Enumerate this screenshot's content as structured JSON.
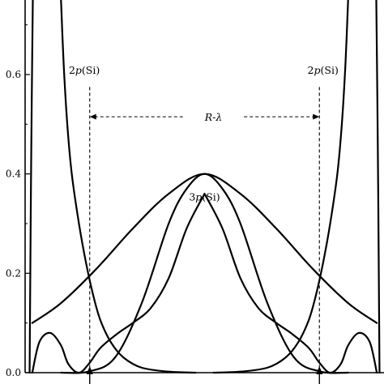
{
  "chart_data": {
    "type": "line",
    "title": "",
    "xlabel": "",
    "ylabel": "",
    "ylim": [
      0,
      0.75
    ],
    "xlim": [
      -1,
      1
    ],
    "y_ticks": [
      0.0,
      0.2,
      0.4,
      0.6
    ],
    "y_tick_labels": [
      "0.0",
      "0.2",
      "0.4",
      "0.6"
    ],
    "grid": false,
    "legend": "none",
    "series": [
      {
        "curve": "wide-bell",
        "x": [
          -0.96,
          -0.8,
          -0.6,
          -0.4,
          -0.2,
          0.0,
          0.2,
          0.4,
          0.6,
          0.8,
          0.96
        ],
        "y": [
          0.1,
          0.14,
          0.21,
          0.29,
          0.36,
          0.4,
          0.36,
          0.29,
          0.21,
          0.14,
          0.1
        ]
      },
      {
        "curve": "narrow-bell",
        "x": [
          -0.8,
          -0.65,
          -0.5,
          -0.35,
          -0.2,
          -0.1,
          0.0,
          0.1,
          0.2,
          0.35,
          0.5,
          0.65,
          0.8
        ],
        "y": [
          0.0,
          0.002,
          0.03,
          0.14,
          0.3,
          0.37,
          0.4,
          0.37,
          0.3,
          0.14,
          0.03,
          0.002,
          0.0
        ]
      },
      {
        "curve": "core-left",
        "x": [
          -0.96,
          -0.92,
          -0.86,
          -0.8,
          -0.76,
          -0.7,
          -0.64,
          -0.58,
          -0.48,
          -0.4,
          -0.3,
          -0.2,
          -0.1,
          0.0
        ],
        "y": [
          0.0,
          0.062,
          0.08,
          0.055,
          0.018,
          0.0,
          0.02,
          0.05,
          0.08,
          0.1,
          0.13,
          0.19,
          0.29,
          0.36
        ]
      },
      {
        "curve": "core-right",
        "x": [
          0.0,
          0.1,
          0.2,
          0.3,
          0.4,
          0.48,
          0.58,
          0.64,
          0.7,
          0.76,
          0.8,
          0.86,
          0.92,
          0.96
        ],
        "y": [
          0.36,
          0.29,
          0.19,
          0.13,
          0.1,
          0.08,
          0.05,
          0.02,
          0.0,
          0.018,
          0.055,
          0.08,
          0.062,
          0.0
        ]
      },
      {
        "curve": "2p-left-peak",
        "x": [
          -0.975,
          -0.972,
          -0.968,
          -0.963,
          -0.957
        ],
        "y": [
          0.0,
          0.15,
          0.35,
          0.55,
          0.75
        ]
      },
      {
        "curve": "2p-left-tail",
        "x": [
          -0.8,
          -0.785,
          -0.765,
          -0.74,
          -0.7,
          -0.66,
          -0.62,
          -0.58,
          -0.52,
          -0.45,
          -0.35,
          -0.2,
          -0.05
        ],
        "y": [
          0.75,
          0.62,
          0.5,
          0.4,
          0.3,
          0.22,
          0.155,
          0.105,
          0.06,
          0.03,
          0.01,
          0.002,
          0.0
        ]
      },
      {
        "curve": "2p-right-tail",
        "x": [
          0.05,
          0.2,
          0.35,
          0.45,
          0.52,
          0.58,
          0.62,
          0.66,
          0.7,
          0.74,
          0.765,
          0.785,
          0.8
        ],
        "y": [
          0.0,
          0.002,
          0.01,
          0.03,
          0.06,
          0.105,
          0.155,
          0.22,
          0.3,
          0.4,
          0.5,
          0.62,
          0.75
        ]
      },
      {
        "curve": "2p-right-peak",
        "x": [
          0.957,
          0.963,
          0.968,
          0.972,
          0.975
        ],
        "y": [
          0.75,
          0.55,
          0.35,
          0.15,
          0.0
        ]
      }
    ],
    "annotations": {
      "label_2p_left": {
        "text": "2p(Si)",
        "x": -0.67,
        "y": 0.61
      },
      "label_2p_right": {
        "text": "2p(Si)",
        "x": 0.66,
        "y": 0.61
      },
      "label_3p": {
        "text": "3p(Si)",
        "x": 0.0,
        "y": 0.355
      },
      "label_r": {
        "text": "R-λ",
        "x": 0.05,
        "y": 0.515
      },
      "dimension_line": {
        "x_from": -0.64,
        "x_to": 0.64,
        "y": 0.515
      },
      "left_marker_x": -0.64,
      "right_marker_x": 0.64
    }
  }
}
